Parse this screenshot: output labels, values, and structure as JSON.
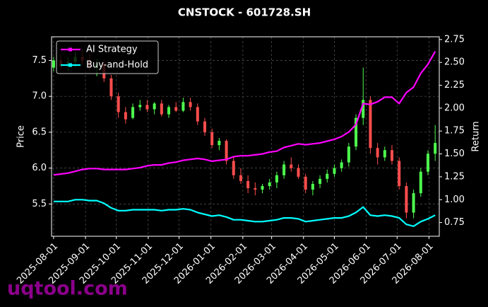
{
  "chart_data": {
    "type": "candlestick",
    "title": "CNSTOCK - 601728.SH",
    "ylabel": "Price",
    "y2label": "Return",
    "watermark": "uqtool.com",
    "grid": true,
    "legend": "upper left",
    "up_color": "#4dff4d",
    "down_color": "#ff4d4d",
    "x": [
      "2025-08-01",
      "2025-08-08",
      "2025-08-15",
      "2025-08-22",
      "2025-08-29",
      "2025-09-05",
      "2025-09-12",
      "2025-09-19",
      "2025-09-26",
      "2025-10-03",
      "2025-10-10",
      "2025-10-17",
      "2025-10-24",
      "2025-10-31",
      "2025-11-07",
      "2025-11-14",
      "2025-11-21",
      "2025-11-28",
      "2025-12-05",
      "2025-12-12",
      "2025-12-19",
      "2025-12-26",
      "2026-01-02",
      "2026-01-09",
      "2026-01-16",
      "2026-01-23",
      "2026-01-30",
      "2026-02-06",
      "2026-02-13",
      "2026-02-20",
      "2026-02-27",
      "2026-03-06",
      "2026-03-13",
      "2026-03-20",
      "2026-03-27",
      "2026-04-03",
      "2026-04-10",
      "2026-04-17",
      "2026-04-24",
      "2026-05-01",
      "2026-05-08",
      "2026-05-15",
      "2026-05-22",
      "2026-05-29",
      "2026-06-05",
      "2026-06-12",
      "2026-06-19",
      "2026-06-26",
      "2026-07-03",
      "2026-07-10",
      "2026-07-17",
      "2026-07-24",
      "2026-07-31",
      "2026-08-07"
    ],
    "open": [
      7.4,
      7.5,
      7.42,
      7.48,
      7.55,
      7.5,
      7.4,
      7.45,
      7.25,
      7.0,
      6.78,
      6.7,
      6.85,
      6.88,
      6.82,
      6.9,
      6.75,
      6.85,
      6.8,
      6.92,
      6.85,
      6.65,
      6.5,
      6.32,
      6.38,
      6.1,
      5.9,
      5.82,
      5.72,
      5.7,
      5.75,
      5.8,
      5.9,
      6.05,
      6.0,
      5.88,
      5.7,
      5.78,
      5.85,
      5.92,
      6.0,
      6.08,
      6.3,
      6.7,
      6.95,
      6.28,
      6.15,
      6.25,
      6.1,
      5.75,
      5.38,
      5.65,
      5.95,
      6.2
    ],
    "high": [
      7.55,
      7.58,
      7.55,
      7.62,
      7.65,
      7.6,
      7.52,
      7.5,
      7.3,
      7.05,
      6.85,
      6.9,
      6.95,
      6.95,
      6.92,
      6.95,
      6.88,
      6.92,
      6.98,
      6.98,
      6.9,
      6.7,
      6.55,
      6.42,
      6.4,
      6.15,
      6.0,
      5.9,
      5.8,
      5.78,
      5.85,
      5.95,
      6.1,
      6.15,
      6.05,
      5.92,
      5.82,
      5.9,
      5.98,
      6.05,
      6.12,
      6.35,
      6.75,
      7.4,
      7.0,
      6.35,
      6.3,
      6.32,
      6.15,
      5.8,
      5.7,
      6.0,
      6.25,
      6.6
    ],
    "low": [
      7.35,
      7.38,
      7.35,
      7.4,
      7.45,
      7.35,
      7.28,
      7.2,
      6.95,
      6.7,
      6.62,
      6.68,
      6.8,
      6.78,
      6.75,
      6.72,
      6.7,
      6.78,
      6.78,
      6.8,
      6.6,
      6.45,
      6.28,
      6.25,
      6.05,
      5.85,
      5.78,
      5.65,
      5.62,
      5.65,
      5.7,
      5.72,
      5.85,
      5.95,
      5.85,
      5.65,
      5.62,
      5.72,
      5.8,
      5.88,
      5.95,
      6.02,
      6.25,
      6.6,
      6.2,
      6.05,
      6.1,
      6.05,
      5.7,
      5.3,
      5.3,
      5.6,
      5.9,
      6.1
    ],
    "close": [
      7.5,
      7.42,
      7.48,
      7.55,
      7.5,
      7.4,
      7.45,
      7.25,
      7.0,
      6.78,
      6.68,
      6.85,
      6.88,
      6.82,
      6.9,
      6.75,
      6.85,
      6.8,
      6.92,
      6.85,
      6.65,
      6.5,
      6.32,
      6.38,
      6.1,
      5.9,
      5.82,
      5.72,
      5.7,
      5.75,
      5.8,
      5.9,
      6.05,
      6.0,
      5.88,
      5.7,
      5.78,
      5.85,
      5.92,
      6.0,
      6.08,
      6.3,
      6.7,
      6.95,
      6.28,
      6.15,
      6.25,
      6.1,
      5.75,
      5.38,
      5.65,
      5.95,
      6.2,
      6.35
    ],
    "series": [
      {
        "name": "AI Strategy",
        "color": "#ff00ff",
        "axis": "y2",
        "values": [
          1.27,
          1.28,
          1.29,
          1.31,
          1.33,
          1.34,
          1.34,
          1.33,
          1.33,
          1.33,
          1.33,
          1.34,
          1.35,
          1.37,
          1.38,
          1.38,
          1.4,
          1.41,
          1.43,
          1.44,
          1.45,
          1.44,
          1.42,
          1.43,
          1.44,
          1.47,
          1.48,
          1.48,
          1.49,
          1.5,
          1.52,
          1.53,
          1.57,
          1.59,
          1.61,
          1.6,
          1.61,
          1.62,
          1.64,
          1.66,
          1.69,
          1.74,
          1.82,
          2.05,
          2.04,
          2.07,
          2.12,
          2.12,
          2.05,
          2.17,
          2.23,
          2.38,
          2.48,
          2.62
        ]
      },
      {
        "name": "Buy-and-Hold",
        "color": "#00ffff",
        "axis": "y2",
        "values": [
          0.98,
          0.98,
          0.98,
          1.0,
          1.0,
          0.99,
          0.99,
          0.96,
          0.91,
          0.88,
          0.88,
          0.89,
          0.89,
          0.89,
          0.89,
          0.88,
          0.89,
          0.89,
          0.9,
          0.89,
          0.86,
          0.84,
          0.82,
          0.83,
          0.81,
          0.78,
          0.78,
          0.77,
          0.76,
          0.76,
          0.77,
          0.78,
          0.8,
          0.8,
          0.79,
          0.76,
          0.77,
          0.78,
          0.79,
          0.8,
          0.8,
          0.82,
          0.86,
          0.92,
          0.83,
          0.82,
          0.83,
          0.82,
          0.8,
          0.73,
          0.71,
          0.76,
          0.79,
          0.83
        ]
      }
    ],
    "xlim": [
      "2025-07-30",
      "2026-08-11"
    ],
    "xticks": [
      "2025-08-01",
      "2025-09-01",
      "2025-10-01",
      "2025-11-01",
      "2025-12-01",
      "2026-01-01",
      "2026-02-01",
      "2026-03-01",
      "2026-04-01",
      "2026-05-01",
      "2026-06-01",
      "2026-07-01",
      "2026-08-01"
    ],
    "ylim": [
      5.05,
      7.83
    ],
    "yticks": [
      5.5,
      {
        "value": 6,
        "label": "6.0"
      },
      6.5,
      {
        "value": 7,
        "label": "7.0"
      },
      7.5
    ],
    "y2lim": [
      0.6,
      2.78
    ],
    "y2ticks": [
      0.75,
      {
        "value": 1,
        "label": "1.00"
      },
      1.25,
      {
        "value": 1.5,
        "label": "1.50"
      },
      1.75,
      {
        "value": 2,
        "label": "2.00"
      },
      2.25,
      {
        "value": 2.5,
        "label": "2.50"
      },
      2.75
    ]
  }
}
